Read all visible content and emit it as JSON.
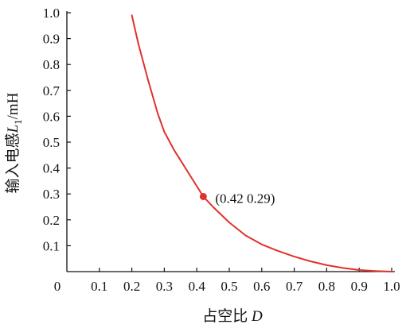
{
  "chart_data": {
    "type": "line",
    "title": "",
    "xlabel": {
      "main": "占空比 ",
      "var": "D"
    },
    "ylabel": {
      "main": "输入电感",
      "var": "L",
      "sub": "1",
      "unit": "/mH"
    },
    "xlim": [
      0,
      1.0
    ],
    "ylim": [
      0,
      1.0
    ],
    "x_ticks": [
      0,
      0.1,
      0.2,
      0.3,
      0.4,
      0.5,
      0.6,
      0.7,
      0.8,
      0.9,
      1.0
    ],
    "x_tick_labels": [
      "0",
      "0.1",
      "0.2",
      "0.3",
      "0.4",
      "0.5",
      "0.6",
      "0.7",
      "0.8",
      "0.9",
      "1.0"
    ],
    "y_ticks": [
      0.1,
      0.2,
      0.3,
      0.4,
      0.5,
      0.6,
      0.7,
      0.8,
      0.9,
      1.0
    ],
    "y_tick_labels": [
      "0.1",
      "0.2",
      "0.3",
      "0.4",
      "0.5",
      "0.6",
      "0.7",
      "0.8",
      "0.9",
      "1.0"
    ],
    "grid": false,
    "series": [
      {
        "color": "#e0312b",
        "x": [
          0.2,
          0.22,
          0.25,
          0.28,
          0.3,
          0.33,
          0.35,
          0.38,
          0.4,
          0.42,
          0.45,
          0.5,
          0.55,
          0.6,
          0.65,
          0.7,
          0.75,
          0.8,
          0.85,
          0.9,
          0.95,
          1.0
        ],
        "y": [
          0.99,
          0.88,
          0.74,
          0.61,
          0.54,
          0.47,
          0.43,
          0.37,
          0.33,
          0.29,
          0.25,
          0.19,
          0.14,
          0.105,
          0.08,
          0.058,
          0.04,
          0.025,
          0.014,
          0.006,
          0.002,
          0.0
        ]
      }
    ],
    "annotations": [
      {
        "x": 0.42,
        "y": 0.29,
        "text": "(0.42 0.29)",
        "color": "#e0312b"
      }
    ]
  }
}
